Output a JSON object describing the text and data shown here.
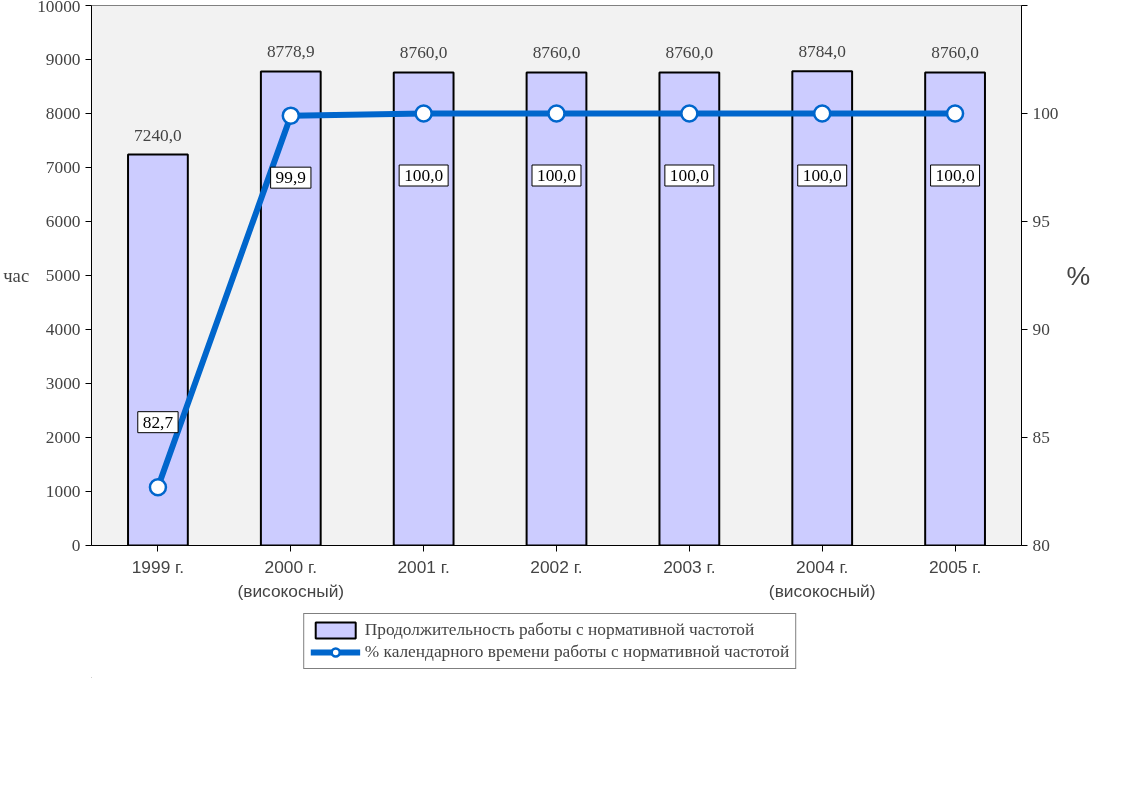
{
  "chart_data": {
    "type": "bar",
    "ylabel": "час",
    "y2label": "%",
    "categories": [
      "1999 г.",
      "2000 г.\n(високосный)",
      "2001 г.",
      "2002 г.",
      "2003 г.",
      "2004 г.\n(високосный)",
      "2005 г."
    ],
    "series": [
      {
        "name": "Продолжительность работы с нормативной частотой",
        "color": "#ccccff",
        "values": [
          7240.0,
          8778.9,
          8760.0,
          8760.0,
          8760.0,
          8784.0,
          8760.0
        ],
        "value_labels": [
          "7240,0",
          "8778,9",
          "8760,0",
          "8760,0",
          "8760,0",
          "8784,0",
          "8760,0"
        ]
      },
      {
        "name": "% календарного времени работы с нормативной частотой",
        "type": "line",
        "axis": "y2",
        "color": "#0066cc",
        "marker": "circle",
        "values": [
          82.7,
          99.9,
          100.0,
          100.0,
          100.0,
          100.0,
          100.0
        ],
        "value_labels": [
          "82,7",
          "99,9",
          "100,0",
          "100,0",
          "100,0",
          "100,0",
          "100,0"
        ]
      }
    ],
    "ylim": [
      0,
      10000
    ],
    "yticks": [
      0,
      1000,
      2000,
      3000,
      4000,
      5000,
      6000,
      7000,
      8000,
      9000,
      10000
    ],
    "y2lim": [
      80,
      105
    ],
    "y2ticks": [
      80,
      85,
      90,
      95,
      100,
      {
        "value": 105,
        "label": null
      }
    ],
    "grid": false,
    "legend": "bottom"
  }
}
